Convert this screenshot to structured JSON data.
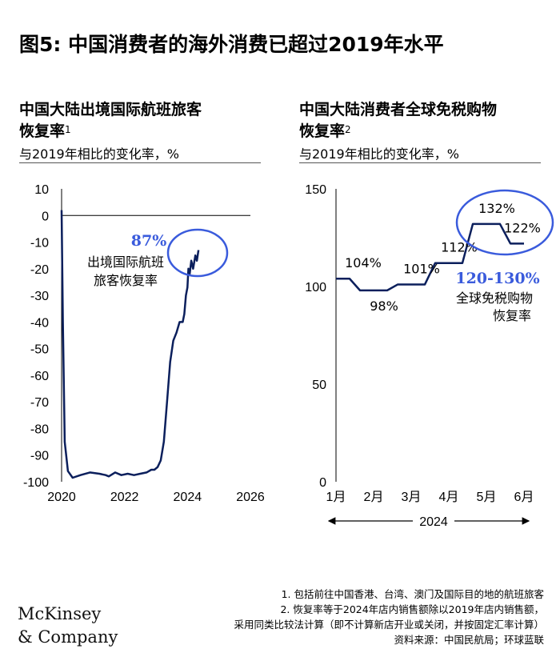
{
  "title": "图5: 中国消费者的海外消费已超过2019年水平",
  "left_panel": {
    "title_line1": "中国大陆出境国际航班旅客",
    "title_line2": "恢复率",
    "title_sup": "1",
    "subtitle": "与2019年相比的变化率，%",
    "annotation_value": "87%",
    "annotation_label_line1": "出境国际航班",
    "annotation_label_line2": "旅客恢复率"
  },
  "right_panel": {
    "title_line1": "中国大陆消费者全球免税购物",
    "title_line2": "恢复率",
    "title_sup": "2",
    "subtitle": "与2019年相比的变化率，%",
    "annotation_value": "120-130%",
    "annotation_label_line1": "全球免税购物",
    "annotation_label_line2": "恢复率",
    "year_label": "2024"
  },
  "chart_data": [
    {
      "type": "line",
      "x_ticks": [
        "2020",
        "2022",
        "2024",
        "2026"
      ],
      "y_ticks": [
        10,
        0,
        -10,
        -20,
        -30,
        -40,
        -50,
        -60,
        -70,
        -80,
        -90,
        -100
      ],
      "xlim": [
        2020,
        2026
      ],
      "ylim": [
        -100,
        10
      ],
      "series": [
        {
          "color": "#0b1f5c",
          "points": [
            [
              2020.0,
              2
            ],
            [
              2020.04,
              -40
            ],
            [
              2020.1,
              -85
            ],
            [
              2020.2,
              -96
            ],
            [
              2020.35,
              -98.5
            ],
            [
              2020.6,
              -97.5
            ],
            [
              2020.9,
              -96.5
            ],
            [
              2021.2,
              -97
            ],
            [
              2021.4,
              -97.5
            ],
            [
              2021.5,
              -98
            ],
            [
              2021.7,
              -96.5
            ],
            [
              2021.9,
              -97.5
            ],
            [
              2022.1,
              -97
            ],
            [
              2022.3,
              -97.5
            ],
            [
              2022.5,
              -97
            ],
            [
              2022.7,
              -96.5
            ],
            [
              2022.85,
              -95.5
            ],
            [
              2022.95,
              -95.5
            ],
            [
              2023.05,
              -94.5
            ],
            [
              2023.15,
              -92
            ],
            [
              2023.25,
              -85
            ],
            [
              2023.35,
              -70
            ],
            [
              2023.45,
              -55
            ],
            [
              2023.55,
              -47
            ],
            [
              2023.65,
              -44
            ],
            [
              2023.75,
              -40
            ],
            [
              2023.85,
              -40
            ],
            [
              2023.9,
              -37
            ],
            [
              2023.95,
              -30
            ],
            [
              2024.0,
              -27
            ],
            [
              2024.03,
              -20
            ],
            [
              2024.07,
              -22
            ],
            [
              2024.12,
              -17
            ],
            [
              2024.18,
              -20
            ],
            [
              2024.25,
              -15
            ],
            [
              2024.3,
              -17
            ],
            [
              2024.35,
              -13
            ]
          ]
        }
      ]
    },
    {
      "type": "line",
      "x_ticks": [
        "1月",
        "2月",
        "3月",
        "4月",
        "5月",
        "6月"
      ],
      "y_ticks": [
        150,
        100,
        50,
        0
      ],
      "ylim": [
        0,
        150
      ],
      "series": [
        {
          "color": "#0b1f5c",
          "data_labels": [
            "104%",
            "98%",
            "101%",
            "112%",
            "132%",
            "122%"
          ],
          "points": [
            [
              1,
              104
            ],
            [
              2,
              98
            ],
            [
              3,
              101
            ],
            [
              4,
              112
            ],
            [
              5,
              132
            ],
            [
              6,
              122
            ]
          ]
        }
      ]
    }
  ],
  "footnotes": {
    "line1": "1.   包括前往中国香港、台湾、澳门及国际目的地的航班旅客",
    "line2": "2.   恢复率等于2024年店内销售额除以2019年店内销售额，",
    "line3": "采用同类比较法计算（即不计算新店开业或关闭，并按固定汇率计算）",
    "line4": "资料来源：中国民航局；环球蓝联"
  },
  "logo": {
    "line1": "McKinsey",
    "line2": "& Company"
  }
}
